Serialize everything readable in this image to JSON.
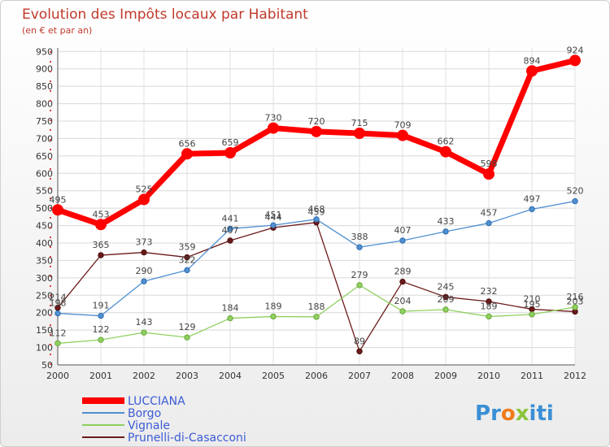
{
  "chart_data": {
    "type": "line",
    "title": "Evolution des Impôts locaux par Habitant",
    "subtitle": "(en € et par an)",
    "x": [
      "2000",
      "2001",
      "2002",
      "2003",
      "2004",
      "2005",
      "2006",
      "2007",
      "2008",
      "2009",
      "2010",
      "2011",
      "2012"
    ],
    "ylim": [
      50,
      960
    ],
    "yticks": [
      50,
      100,
      150,
      200,
      250,
      300,
      350,
      400,
      450,
      500,
      550,
      600,
      650,
      700,
      750,
      800,
      850,
      900,
      950
    ],
    "grid": true,
    "legend_position": "bottom-left",
    "series": [
      {
        "name": "LUCCIANA",
        "color": "#ff0000",
        "values": [
          495,
          453,
          525,
          656,
          659,
          730,
          720,
          715,
          709,
          662,
          598,
          894,
          924
        ]
      },
      {
        "name": "Borgo",
        "color": "#4f8fd0",
        "values": [
          198,
          191,
          290,
          322,
          441,
          451,
          468,
          388,
          407,
          433,
          457,
          497,
          520
        ]
      },
      {
        "name": "Vignale",
        "color": "#8fd060",
        "values": [
          112,
          122,
          143,
          129,
          184,
          189,
          188,
          279,
          204,
          209,
          189,
          195,
          216
        ]
      },
      {
        "name": "Prunelli-di-Casacconi",
        "color": "#6b1a1a",
        "values": [
          214,
          365,
          373,
          359,
          407,
          444,
          459,
          89,
          289,
          245,
          232,
          210,
          203
        ]
      }
    ]
  },
  "brand": {
    "letters": [
      "P",
      "r",
      "o",
      "x",
      "i",
      "t",
      "i"
    ],
    "colors": [
      "#3a8fd6",
      "#3a8fd6",
      "#f07a1a",
      "#8ac43a",
      "#3a8fd6",
      "#3a8fd6",
      "#3a8fd6"
    ]
  }
}
